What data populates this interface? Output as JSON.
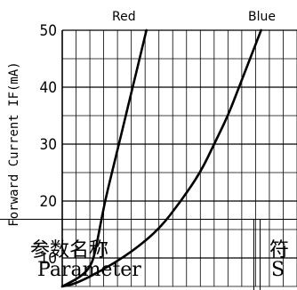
{
  "chart_data": {
    "type": "line",
    "title": "",
    "xlabel": "",
    "ylabel": "Forward Current IF(mA)",
    "ylim": [
      5,
      50
    ],
    "y_ticks": [
      "10",
      "20",
      "30",
      "40",
      "50"
    ],
    "grid": true,
    "series": [
      {
        "name": "Red",
        "color": "#000000",
        "points": [
          [
            0.0,
            5
          ],
          [
            0.6,
            6.5
          ],
          [
            0.95,
            8
          ],
          [
            1.15,
            10
          ],
          [
            1.35,
            15
          ],
          [
            1.55,
            20
          ],
          [
            1.8,
            25
          ],
          [
            2.05,
            30
          ],
          [
            2.3,
            35
          ],
          [
            2.55,
            40
          ],
          [
            2.8,
            45
          ],
          [
            3.05,
            50
          ]
        ]
      },
      {
        "name": "Blue",
        "color": "#000000",
        "points": [
          [
            0.0,
            5
          ],
          [
            0.5,
            5.5
          ],
          [
            1.5,
            8
          ],
          [
            2.5,
            11
          ],
          [
            3.5,
            15
          ],
          [
            4.3,
            20
          ],
          [
            5.0,
            25
          ],
          [
            5.5,
            30
          ],
          [
            6.0,
            35
          ],
          [
            6.4,
            40
          ],
          [
            6.8,
            45
          ],
          [
            7.2,
            50
          ]
        ]
      }
    ]
  },
  "table_overlay": {
    "col1_cn": "参数名称",
    "col1_en": "Parameter",
    "col2_cn": "符",
    "col2_en": "S"
  }
}
